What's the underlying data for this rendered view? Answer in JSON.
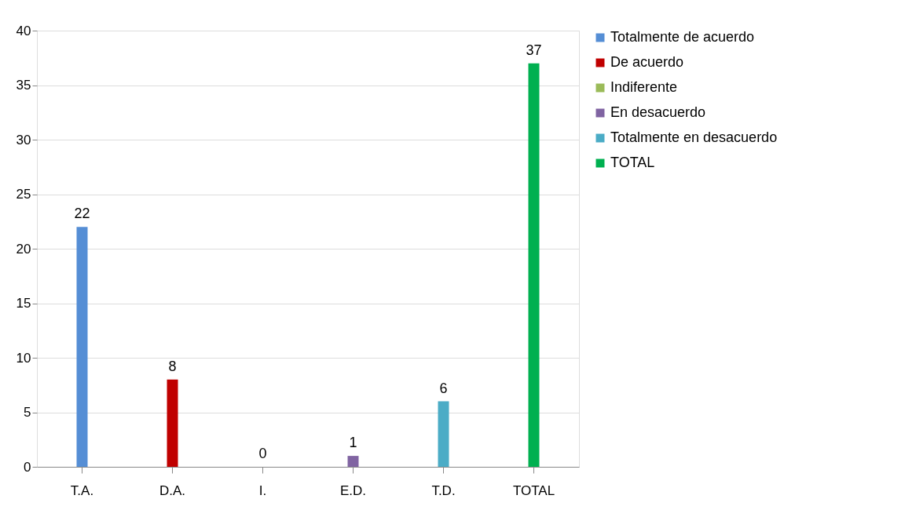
{
  "chart_data": {
    "type": "bar",
    "categories": [
      "T.A.",
      "D.A.",
      "I.",
      "E.D.",
      "T.D.",
      "TOTAL"
    ],
    "series": [
      {
        "name": "Totalmente de acuerdo",
        "color": "#558ed5",
        "values": [
          22,
          null,
          null,
          null,
          null,
          null
        ]
      },
      {
        "name": "De acuerdo",
        "color": "#c00000",
        "values": [
          null,
          8,
          null,
          null,
          null,
          null
        ]
      },
      {
        "name": "Indiferente",
        "color": "#9bbb59",
        "values": [
          null,
          null,
          0,
          null,
          null,
          null
        ]
      },
      {
        "name": "En desacuerdo",
        "color": "#8064a2",
        "values": [
          null,
          null,
          null,
          1,
          null,
          null
        ]
      },
      {
        "name": "Totalmente en desacuerdo",
        "color": "#4bacc6",
        "values": [
          null,
          null,
          null,
          null,
          6,
          null
        ]
      },
      {
        "name": "TOTAL",
        "color": "#00b050",
        "values": [
          null,
          null,
          null,
          null,
          null,
          37
        ]
      }
    ],
    "ylim": [
      0,
      40
    ],
    "yticks": [
      0,
      5,
      10,
      15,
      20,
      25,
      30,
      35,
      40
    ],
    "grid": "y",
    "legend": "right",
    "data_labels": true
  }
}
